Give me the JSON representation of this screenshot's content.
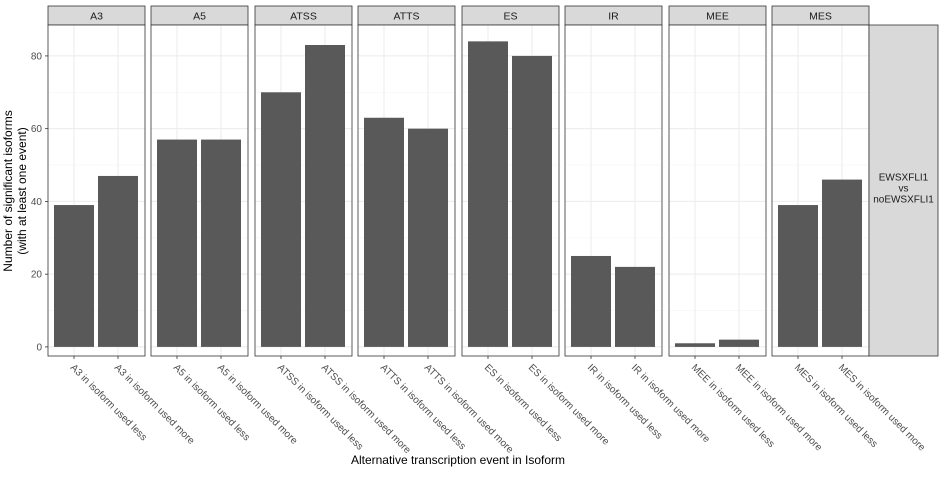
{
  "chart_data": {
    "type": "bar",
    "facet_by": "event_type",
    "facets": [
      {
        "label": "A3",
        "categories": [
          "A3 in isoform used less",
          "A3 in isoform used more"
        ],
        "values": [
          39,
          47
        ]
      },
      {
        "label": "A5",
        "categories": [
          "A5 in isoform used less",
          "A5 in isoform used more"
        ],
        "values": [
          57,
          57
        ]
      },
      {
        "label": "ATSS",
        "categories": [
          "ATSS in isoform used less",
          "ATSS in isoform used more"
        ],
        "values": [
          70,
          83
        ]
      },
      {
        "label": "ATTS",
        "categories": [
          "ATTS in isoform used less",
          "ATTS in isoform used more"
        ],
        "values": [
          63,
          60
        ]
      },
      {
        "label": "ES",
        "categories": [
          "ES in isoform used less",
          "ES in isoform used more"
        ],
        "values": [
          84,
          80
        ]
      },
      {
        "label": "IR",
        "categories": [
          "IR in isoform used less",
          "IR in isoform used more"
        ],
        "values": [
          25,
          22
        ]
      },
      {
        "label": "MEE",
        "categories": [
          "MEE in isoform used less",
          "MEE in isoform used more"
        ],
        "values": [
          1,
          2
        ]
      },
      {
        "label": "MES",
        "categories": [
          "MES in isoform used less",
          "MES in isoform used more"
        ],
        "values": [
          39,
          46
        ]
      }
    ],
    "row_strip": [
      "EWSXFLI1",
      "vs",
      "noEWSXFLI1"
    ],
    "ylabel": [
      "Number of significant isoforms",
      "(with at least one event)"
    ],
    "xlabel": "Alternative transcription event in Isoform",
    "ylim": [
      -2.5,
      88.5
    ],
    "yticks": [
      0,
      20,
      40,
      60,
      80
    ],
    "grid": true,
    "colors": {
      "bar": "#595959",
      "strip_fill": "#d9d9d9",
      "panel_border": "#333333",
      "grid_major": "#ebebeb",
      "grid_minor": "#f5f5f5"
    }
  }
}
